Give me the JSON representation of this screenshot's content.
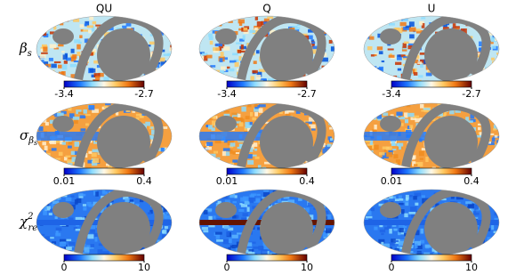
{
  "columns": [
    "QU",
    "Q",
    "U"
  ],
  "rows": [
    {
      "label": {
        "symbol": "β",
        "sub": "s"
      },
      "colorbar": {
        "min": -3.4,
        "max": -2.7
      }
    },
    {
      "label": {
        "symbol": "σ",
        "sub": "β",
        "subsub": "s"
      },
      "colorbar": {
        "min": 0.01,
        "max": 0.4
      }
    },
    {
      "label": {
        "symbol": "χ",
        "sup": "2",
        "sub": "red"
      },
      "colorbar": {
        "min": 0,
        "max": 10
      }
    }
  ]
}
